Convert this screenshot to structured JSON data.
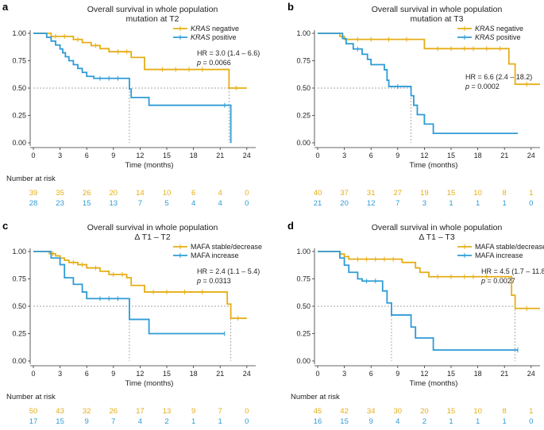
{
  "colors": {
    "negative": "#E5AE16",
    "positive": "#2E9BD6",
    "axis": "#333333",
    "ref": "#888888"
  },
  "chart_data": [
    {
      "type": "line",
      "panel": "a",
      "title": [
        "Overall survival in whole population",
        "mutation at T2"
      ],
      "xlabel": "Time (months)",
      "xlim": [
        0,
        25
      ],
      "ylim": [
        0,
        1
      ],
      "xticks": [
        0,
        3,
        6,
        9,
        12,
        15,
        18,
        21,
        24
      ],
      "yticks": [
        "0.00",
        "0.25",
        "0.50",
        "0.75",
        "1.00"
      ],
      "legend": [
        {
          "italic": "KRAS",
          "rest": " negative"
        },
        {
          "italic": "KRAS",
          "rest": " positive"
        }
      ],
      "hr_text": "HR = 3.0 (1.4 – 6.6)",
      "p_label": "p",
      "p_value": " = 0.0066",
      "median_lines": [
        10.8,
        22.0
      ],
      "series": [
        {
          "name": "KRAS negative",
          "color_key": "negative",
          "steps": [
            [
              0,
              1
            ],
            [
              2.0,
              0.972
            ],
            [
              4.5,
              0.944
            ],
            [
              5.5,
              0.916
            ],
            [
              6.5,
              0.888
            ],
            [
              7.5,
              0.86
            ],
            [
              8.5,
              0.832
            ],
            [
              11.0,
              0.78
            ],
            [
              12.5,
              0.67
            ],
            [
              22.0,
              0.5
            ],
            [
              24.0,
              0.5
            ]
          ],
          "censor": [
            [
              2.5,
              0.972
            ],
            [
              3.5,
              0.972
            ],
            [
              5.0,
              0.944
            ],
            [
              7.0,
              0.888
            ],
            [
              9.5,
              0.832
            ],
            [
              10.5,
              0.832
            ],
            [
              14.5,
              0.67
            ],
            [
              16.0,
              0.67
            ],
            [
              17.5,
              0.67
            ],
            [
              19.0,
              0.67
            ],
            [
              22.8,
              0.5
            ]
          ]
        },
        {
          "name": "KRAS positive",
          "color_key": "positive",
          "steps": [
            [
              0,
              1
            ],
            [
              1.5,
              0.964
            ],
            [
              2.0,
              0.929
            ],
            [
              2.5,
              0.893
            ],
            [
              3.0,
              0.857
            ],
            [
              3.3,
              0.822
            ],
            [
              3.6,
              0.786
            ],
            [
              4.0,
              0.75
            ],
            [
              4.5,
              0.714
            ],
            [
              5.0,
              0.679
            ],
            [
              5.5,
              0.643
            ],
            [
              6.0,
              0.607
            ],
            [
              6.8,
              0.589
            ],
            [
              10.3,
              0.589
            ],
            [
              10.8,
              0.491
            ],
            [
              11.0,
              0.414
            ],
            [
              13.0,
              0.343
            ],
            [
              22.2,
              0.0
            ]
          ],
          "censor": [
            [
              7.5,
              0.589
            ],
            [
              8.5,
              0.589
            ],
            [
              9.5,
              0.589
            ],
            [
              21.5,
              0.343
            ]
          ]
        }
      ],
      "risk": {
        "label": "Number at risk",
        "rows": [
          {
            "color_key": "negative",
            "values": [
              "39",
              "35",
              "26",
              "20",
              "14",
              "10",
              "6",
              "4",
              "0"
            ]
          },
          {
            "color_key": "positive",
            "values": [
              "28",
              "23",
              "15",
              "13",
              "7",
              "5",
              "4",
              "4",
              "0"
            ]
          }
        ]
      }
    },
    {
      "type": "line",
      "panel": "b",
      "title": [
        "Overall survival in whole population",
        "mutation at T3"
      ],
      "xlabel": "Time (months)",
      "xlim": [
        0,
        25
      ],
      "ylim": [
        0,
        1
      ],
      "xticks": [
        0,
        3,
        6,
        9,
        12,
        15,
        18,
        21,
        24
      ],
      "yticks": [
        "0.00",
        "0.25",
        "0.50",
        "0.75",
        "1.00"
      ],
      "legend": [
        {
          "italic": "KRAS",
          "rest": " negative"
        },
        {
          "italic": "KRAS",
          "rest": " positive"
        }
      ],
      "hr_text": "HR = 6.6 (2.4 – 18.2)",
      "p_label": "p",
      "p_value": " = 0.0002",
      "median_lines": [
        10.5
      ],
      "series": [
        {
          "name": "KRAS negative",
          "color_key": "negative",
          "steps": [
            [
              0,
              1
            ],
            [
              2.5,
              0.972
            ],
            [
              3.0,
              0.945
            ],
            [
              12.0,
              0.86
            ],
            [
              21.5,
              0.72
            ],
            [
              22.2,
              0.535
            ],
            [
              25.0,
              0.535
            ]
          ],
          "censor": [
            [
              4.5,
              0.945
            ],
            [
              6.0,
              0.945
            ],
            [
              8.0,
              0.945
            ],
            [
              10.0,
              0.945
            ],
            [
              13.5,
              0.86
            ],
            [
              15.0,
              0.86
            ],
            [
              16.5,
              0.86
            ],
            [
              17.5,
              0.86
            ],
            [
              19.0,
              0.86
            ],
            [
              20.5,
              0.86
            ],
            [
              23.5,
              0.535
            ]
          ]
        },
        {
          "name": "KRAS positive",
          "color_key": "positive",
          "steps": [
            [
              0,
              1
            ],
            [
              2.8,
              0.952
            ],
            [
              3.2,
              0.905
            ],
            [
              4.0,
              0.857
            ],
            [
              5.0,
              0.809
            ],
            [
              5.6,
              0.762
            ],
            [
              6.0,
              0.714
            ],
            [
              7.5,
              0.667
            ],
            [
              7.8,
              0.571
            ],
            [
              8.0,
              0.514
            ],
            [
              10.5,
              0.43
            ],
            [
              10.8,
              0.343
            ],
            [
              11.2,
              0.257
            ],
            [
              12.0,
              0.171
            ],
            [
              13.0,
              0.086
            ],
            [
              22.5,
              0.086
            ]
          ],
          "censor": [
            [
              4.5,
              0.857
            ],
            [
              9.0,
              0.514
            ]
          ]
        }
      ],
      "risk": {
        "label": "",
        "rows": [
          {
            "color_key": "negative",
            "values": [
              "40",
              "37",
              "31",
              "27",
              "19",
              "15",
              "10",
              "8",
              "1"
            ]
          },
          {
            "color_key": "positive",
            "values": [
              "21",
              "20",
              "12",
              "7",
              "3",
              "1",
              "1",
              "1",
              "0"
            ]
          }
        ]
      }
    },
    {
      "type": "line",
      "panel": "c",
      "title": [
        "Overall survival in whole population",
        "Δ T1 – T2"
      ],
      "xlabel": "Time (months)",
      "xlim": [
        0,
        25
      ],
      "ylim": [
        0,
        1
      ],
      "xticks": [
        0,
        3,
        6,
        9,
        12,
        15,
        18,
        21,
        24
      ],
      "yticks": [
        "0.00",
        "0.25",
        "0.50",
        "0.75",
        "1.00"
      ],
      "legend": [
        {
          "italic": "",
          "rest": "MAFA stable/decrease"
        },
        {
          "italic": "",
          "rest": "MAFA increase"
        }
      ],
      "hr_text": "HR = 2.4 (1.1 – 5.4)",
      "p_label": "p",
      "p_value": " = 0.0313",
      "median_lines": [
        10.8,
        22.2
      ],
      "series": [
        {
          "name": "MAFA stable/decrease",
          "color_key": "negative",
          "steps": [
            [
              0,
              1
            ],
            [
              1.8,
              0.98
            ],
            [
              2.5,
              0.96
            ],
            [
              3.0,
              0.94
            ],
            [
              3.5,
              0.92
            ],
            [
              4.0,
              0.9
            ],
            [
              5.0,
              0.88
            ],
            [
              6.0,
              0.85
            ],
            [
              7.5,
              0.82
            ],
            [
              8.5,
              0.79
            ],
            [
              10.5,
              0.76
            ],
            [
              11.0,
              0.69
            ],
            [
              12.5,
              0.63
            ],
            [
              21.8,
              0.52
            ],
            [
              22.2,
              0.39
            ],
            [
              24.0,
              0.39
            ]
          ],
          "censor": [
            [
              2.2,
              0.98
            ],
            [
              4.5,
              0.9
            ],
            [
              5.5,
              0.88
            ],
            [
              7.0,
              0.85
            ],
            [
              9.0,
              0.79
            ],
            [
              10.0,
              0.79
            ],
            [
              13.5,
              0.63
            ],
            [
              15.0,
              0.63
            ],
            [
              17.0,
              0.63
            ],
            [
              19.0,
              0.63
            ],
            [
              23.0,
              0.39
            ]
          ]
        },
        {
          "name": "MAFA increase",
          "color_key": "positive",
          "steps": [
            [
              0,
              1
            ],
            [
              2.0,
              0.94
            ],
            [
              3.0,
              0.88
            ],
            [
              3.5,
              0.76
            ],
            [
              4.5,
              0.7
            ],
            [
              5.5,
              0.63
            ],
            [
              6.0,
              0.57
            ],
            [
              10.5,
              0.57
            ],
            [
              10.8,
              0.38
            ],
            [
              13.0,
              0.25
            ],
            [
              21.5,
              0.25
            ]
          ],
          "censor": [
            [
              7.5,
              0.57
            ],
            [
              8.5,
              0.57
            ],
            [
              9.5,
              0.57
            ],
            [
              21.5,
              0.25
            ]
          ]
        }
      ],
      "risk": {
        "label": "Number at risk",
        "rows": [
          {
            "color_key": "negative",
            "values": [
              "50",
              "43",
              "32",
              "26",
              "17",
              "13",
              "9",
              "7",
              "0"
            ]
          },
          {
            "color_key": "positive",
            "values": [
              "17",
              "15",
              "9",
              "7",
              "4",
              "2",
              "1",
              "1",
              "0"
            ]
          }
        ]
      }
    },
    {
      "type": "line",
      "panel": "d",
      "title": [
        "Overall survival in whole population",
        "Δ T1 – T3"
      ],
      "xlabel": "Time (months)",
      "xlim": [
        0,
        25
      ],
      "ylim": [
        0,
        1
      ],
      "xticks": [
        0,
        3,
        6,
        9,
        12,
        15,
        18,
        21,
        24
      ],
      "yticks": [
        "0.00",
        "0.25",
        "0.50",
        "0.75",
        "1.00"
      ],
      "legend": [
        {
          "italic": "",
          "rest": "MAFA stable/decrease"
        },
        {
          "italic": "",
          "rest": "MAFA increase"
        }
      ],
      "hr_text": "HR = 4.5 (1.7 – 11.8)",
      "p_label": "p",
      "p_value": " = 0.0027",
      "median_lines": [
        8.3,
        22.2
      ],
      "series": [
        {
          "name": "MAFA stable/decrease",
          "color_key": "negative",
          "steps": [
            [
              0,
              1
            ],
            [
              2.5,
              0.977
            ],
            [
              3.0,
              0.954
            ],
            [
              3.5,
              0.93
            ],
            [
              9.5,
              0.9
            ],
            [
              11.0,
              0.85
            ],
            [
              11.5,
              0.81
            ],
            [
              12.5,
              0.77
            ],
            [
              21.8,
              0.6
            ],
            [
              22.2,
              0.48
            ],
            [
              25.0,
              0.48
            ]
          ],
          "censor": [
            [
              4.5,
              0.93
            ],
            [
              5.5,
              0.93
            ],
            [
              6.5,
              0.93
            ],
            [
              7.5,
              0.93
            ],
            [
              8.5,
              0.93
            ],
            [
              13.5,
              0.77
            ],
            [
              15.0,
              0.77
            ],
            [
              16.5,
              0.77
            ],
            [
              17.5,
              0.77
            ],
            [
              19.0,
              0.77
            ],
            [
              23.5,
              0.48
            ]
          ]
        },
        {
          "name": "MAFA increase",
          "color_key": "positive",
          "steps": [
            [
              0,
              1
            ],
            [
              2.5,
              0.94
            ],
            [
              3.0,
              0.875
            ],
            [
              3.5,
              0.81
            ],
            [
              4.5,
              0.75
            ],
            [
              5.0,
              0.73
            ],
            [
              7.3,
              0.64
            ],
            [
              7.8,
              0.53
            ],
            [
              8.3,
              0.42
            ],
            [
              10.5,
              0.31
            ],
            [
              11.0,
              0.21
            ],
            [
              13.0,
              0.1
            ],
            [
              22.5,
              0.1
            ]
          ],
          "censor": [
            [
              5.5,
              0.73
            ],
            [
              6.5,
              0.73
            ],
            [
              22.5,
              0.1
            ]
          ]
        }
      ],
      "risk": {
        "label": "Number at risk",
        "rows": [
          {
            "color_key": "negative",
            "values": [
              "45",
              "42",
              "34",
              "30",
              "20",
              "15",
              "10",
              "8",
              "1"
            ]
          },
          {
            "color_key": "positive",
            "values": [
              "16",
              "15",
              "9",
              "4",
              "2",
              "1",
              "1",
              "1",
              "0"
            ]
          }
        ]
      }
    }
  ]
}
